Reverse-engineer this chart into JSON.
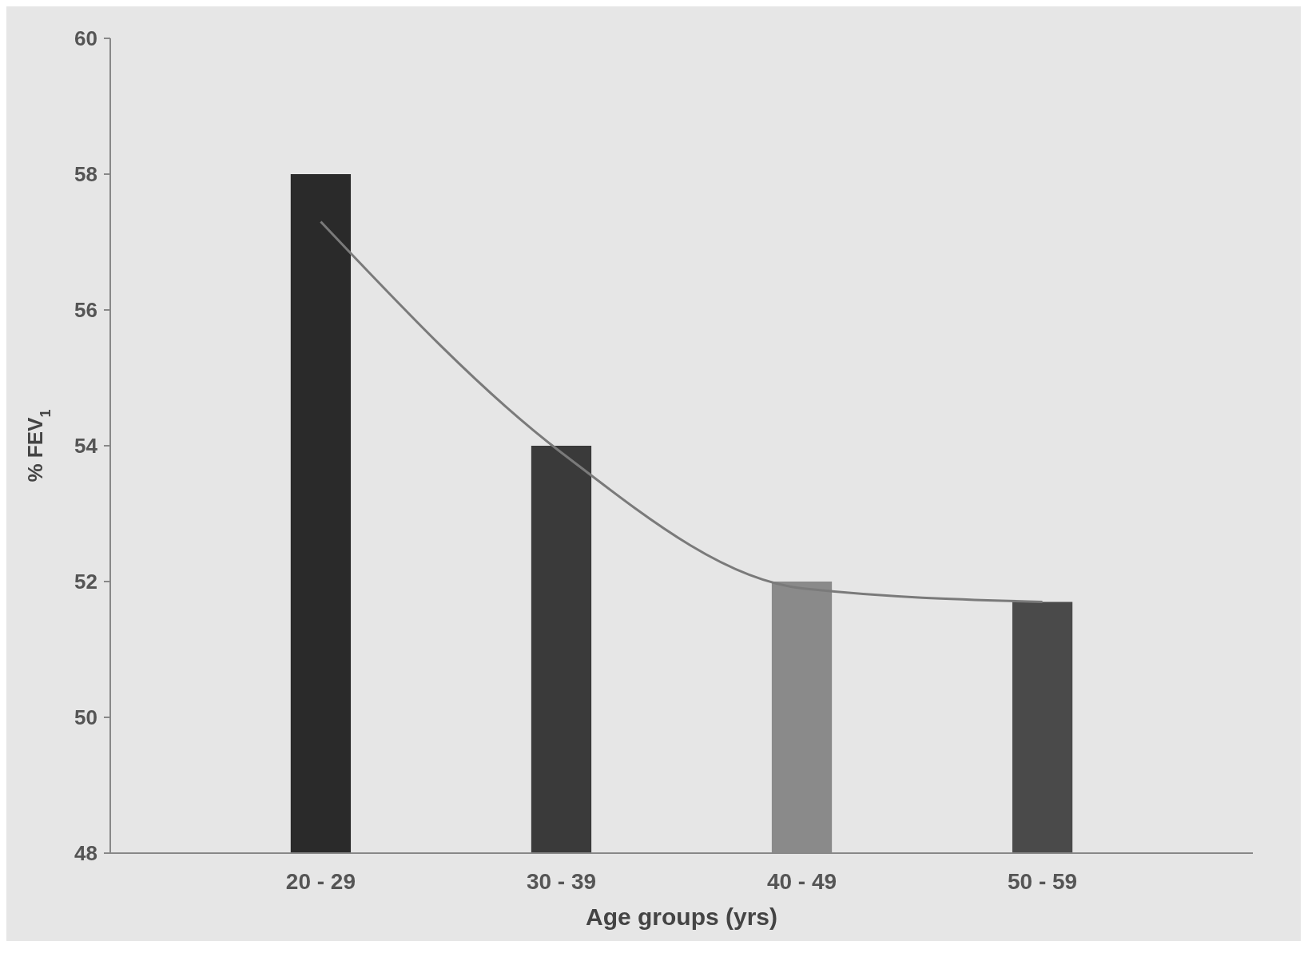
{
  "chart_data": {
    "type": "bar",
    "xlabel": "Age groups (yrs)",
    "ylabel": "% FEV$_{1}$",
    "categories": [
      "20 - 29",
      "30 - 39",
      "40 - 49",
      "50 - 59"
    ],
    "ylim": [
      48,
      60
    ],
    "yticks": [
      48,
      50,
      52,
      54,
      56,
      58,
      60
    ],
    "grid": false,
    "series": [
      {
        "colors": [
          "#2a2a2a",
          "#3a3a3a",
          "#8a8a8a",
          "#4a4a4a"
        ],
        "values": [
          58,
          54,
          52,
          51.7
        ]
      },
      {
        "type": "line",
        "color": "#7a7a7a",
        "values": [
          57.3,
          53.9,
          51.9,
          51.7
        ]
      }
    ]
  }
}
